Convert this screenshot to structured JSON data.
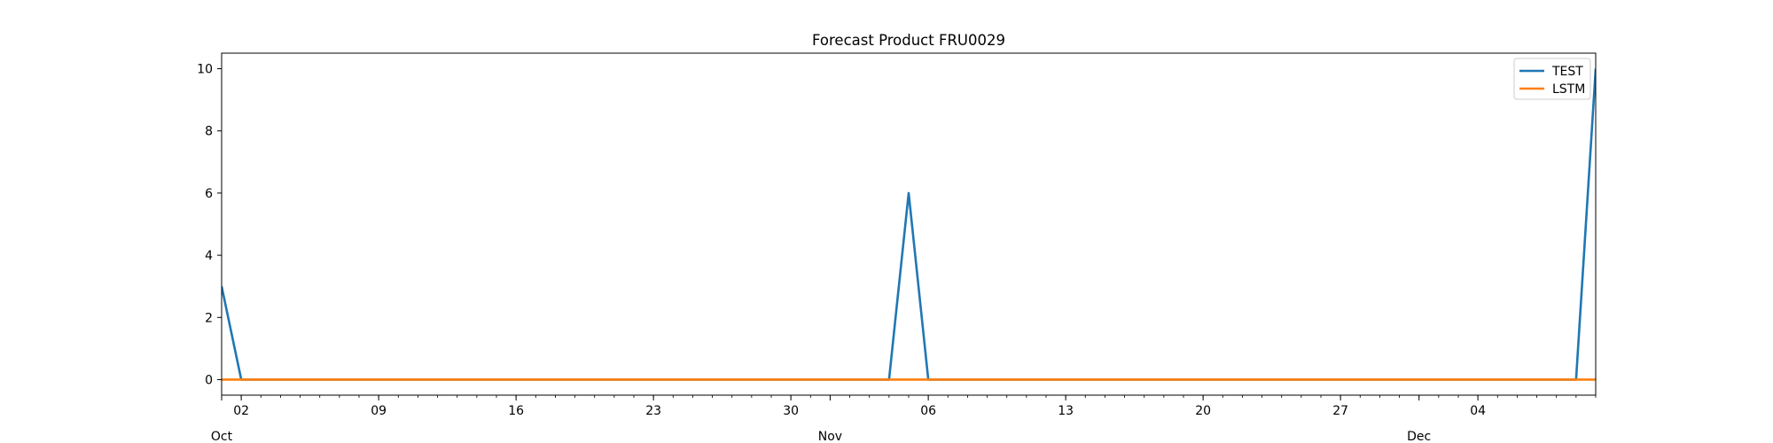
{
  "chart_data": {
    "type": "line",
    "title": "Forecast Product FRU0029",
    "xlabel": "",
    "ylabel": "",
    "x_range": [
      "2023-10-01",
      "2023-12-10"
    ],
    "ylim": [
      -0.5,
      10.5
    ],
    "yticks": [
      0,
      2,
      4,
      6,
      8,
      10
    ],
    "x_major_ticks": [
      {
        "date": "2023-10-02",
        "label": "02"
      },
      {
        "date": "2023-10-09",
        "label": "09"
      },
      {
        "date": "2023-10-16",
        "label": "16"
      },
      {
        "date": "2023-10-23",
        "label": "23"
      },
      {
        "date": "2023-10-30",
        "label": "30"
      },
      {
        "date": "2023-11-06",
        "label": "06"
      },
      {
        "date": "2023-11-13",
        "label": "13"
      },
      {
        "date": "2023-11-20",
        "label": "20"
      },
      {
        "date": "2023-11-27",
        "label": "27"
      },
      {
        "date": "2023-12-04",
        "label": "04"
      }
    ],
    "x_month_labels": [
      {
        "date": "2023-10-01",
        "label": "Oct"
      },
      {
        "date": "2023-11-01",
        "label": "Nov"
      },
      {
        "date": "2023-12-01",
        "label": "Dec"
      }
    ],
    "grid": false,
    "legend": {
      "placement": "top-right"
    },
    "series": [
      {
        "name": "TEST",
        "color": "#1f77b4",
        "points": [
          {
            "x": "2023-10-01",
            "y": 3
          },
          {
            "x": "2023-10-02",
            "y": 0
          },
          {
            "x": "2023-11-04",
            "y": 0
          },
          {
            "x": "2023-11-05",
            "y": 6
          },
          {
            "x": "2023-11-06",
            "y": 0
          },
          {
            "x": "2023-12-09",
            "y": 0
          },
          {
            "x": "2023-12-10",
            "y": 10
          }
        ]
      },
      {
        "name": "LSTM",
        "color": "#ff7f0e",
        "points": [
          {
            "x": "2023-10-01",
            "y": 0
          },
          {
            "x": "2023-12-10",
            "y": 0
          }
        ]
      }
    ]
  }
}
